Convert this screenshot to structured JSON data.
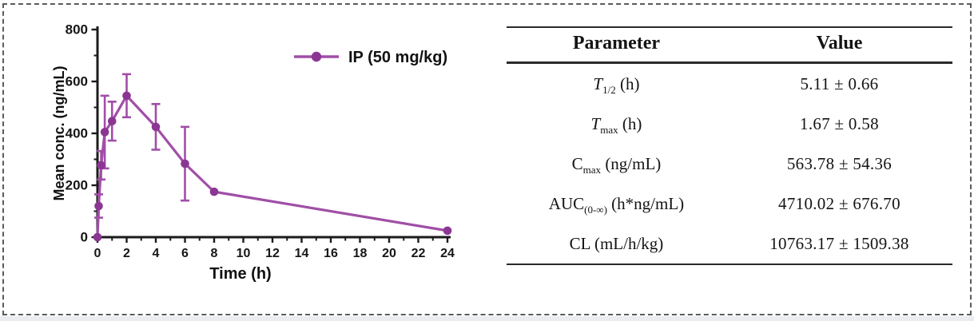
{
  "chart_data": {
    "type": "line",
    "title": "",
    "xlabel": "Time (h)",
    "ylabel": "Mean conc. (ng/mL)",
    "xlim": [
      0,
      24
    ],
    "ylim": [
      0,
      800
    ],
    "xticks": [
      0,
      2,
      4,
      6,
      8,
      10,
      12,
      14,
      16,
      18,
      20,
      22,
      24
    ],
    "yticks": [
      0,
      200,
      400,
      600,
      800
    ],
    "grid": false,
    "legend_position": "top-right",
    "line_color": "#a14ea7",
    "marker_color": "#8c3694",
    "axis_color": "#1b1b1b",
    "series": [
      {
        "name": "IP (50 mg/kg)",
        "x": [
          0,
          0.083,
          0.25,
          0.5,
          1,
          2,
          4,
          6,
          8,
          24
        ],
        "y": [
          0,
          120,
          277,
          405,
          447,
          545,
          425,
          283,
          175,
          25
        ],
        "yerr": [
          0,
          45,
          55,
          140,
          75,
          83,
          88,
          142,
          0,
          0
        ]
      }
    ]
  },
  "table": {
    "headers": [
      "Parameter",
      "Value"
    ],
    "rows": [
      {
        "main": "T",
        "italic": true,
        "sub": "1/2",
        "suffix": " (h)",
        "value": "5.11 ± 0.66"
      },
      {
        "main": "T",
        "italic": true,
        "sub": "max",
        "suffix": " (h)",
        "value": "1.67 ± 0.58"
      },
      {
        "main": "C",
        "italic": false,
        "sub": "max",
        "suffix": " (ng/mL)",
        "value": "563.78 ± 54.36"
      },
      {
        "main": "AUC",
        "italic": false,
        "sub": "(0-∞)",
        "suffix": " (h*ng/mL)",
        "value": "4710.02 ± 676.70"
      },
      {
        "main": "CL",
        "italic": false,
        "sub": "",
        "suffix": " (mL/h/kg)",
        "value": "10763.17 ± 1509.38"
      }
    ]
  }
}
